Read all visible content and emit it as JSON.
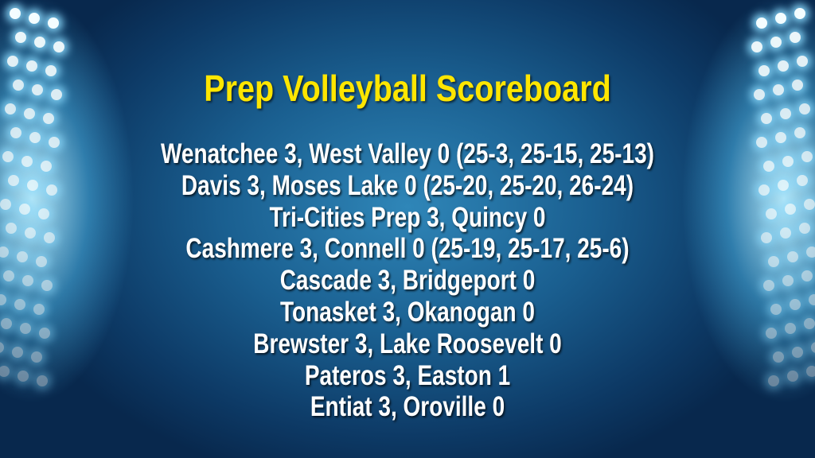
{
  "title": "Prep Volleyball Scoreboard",
  "colors": {
    "title": "#ffe600",
    "text": "#ffffff",
    "background": "#1a5f90"
  },
  "results": [
    "Wenatchee 3, West Valley 0 (25-3, 25-15, 25-13)",
    "Davis 3, Moses Lake 0 (25-20, 25-20, 26-24)",
    "Tri-Cities Prep 3, Quincy 0",
    "Cashmere 3, Connell 0 (25-19, 25-17, 25-6)",
    "Cascade 3, Bridgeport 0",
    "Tonasket 3, Okanogan 0",
    "Brewster 3, Lake Roosevelt 0",
    "Pateros 3, Easton 1",
    "Entiat 3, Oroville 0"
  ]
}
